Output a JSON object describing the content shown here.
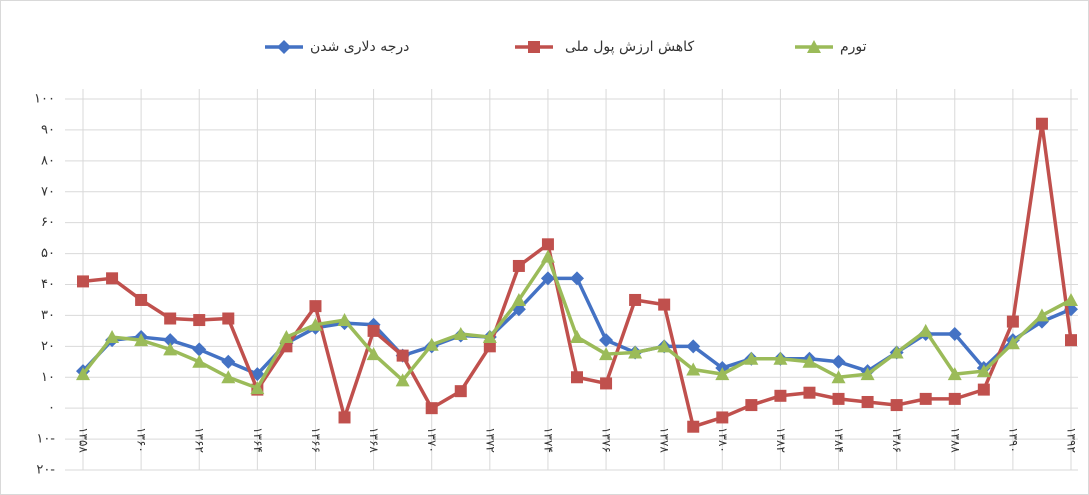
{
  "chart_data": {
    "type": "line",
    "categories": [
      "۱۳۵۸",
      null,
      "۱۳۶۰",
      null,
      "۱۳۶۲",
      null,
      "۱۳۶۴",
      null,
      "۱۳۶۶",
      null,
      "۱۳۶۸",
      null,
      "۱۳۷۰",
      null,
      "۱۳۷۲",
      null,
      "۱۳۷۴",
      null,
      "۱۳۷۶",
      null,
      "۱۳۷۸",
      null,
      "۱۳۸۰",
      null,
      "۱۳۸۲",
      null,
      "۱۳۸۴",
      null,
      "۱۳۸۶",
      null,
      "۱۳۸۸",
      null,
      "۱۳۹۰",
      null,
      "۱۳۹۲"
    ],
    "series": [
      {
        "name": "درجه دلاری شدن",
        "color": "#4472c4",
        "marker": "diamond",
        "values": [
          12,
          22,
          23,
          22,
          19,
          15,
          11,
          21,
          26,
          27.5,
          27,
          17,
          20,
          23.5,
          23,
          32,
          42,
          42,
          22,
          18,
          20,
          20,
          13,
          16,
          16,
          16,
          15,
          12,
          18,
          24,
          24,
          13,
          22,
          28,
          32
        ]
      },
      {
        "name": "کاهش ارزش پول ملی",
        "color": "#c0504d",
        "marker": "square",
        "values": [
          41,
          42,
          35,
          29,
          28.5,
          29,
          6,
          20,
          33,
          -3,
          25,
          17,
          0,
          5.5,
          20,
          46,
          53,
          10,
          8,
          35,
          33.5,
          -6,
          -3,
          1,
          4,
          5,
          3,
          2,
          1,
          3,
          3,
          6,
          28,
          92,
          22
        ]
      },
      {
        "name": "تورم",
        "color": "#9bbb59",
        "marker": "triangle",
        "values": [
          11,
          23,
          22,
          19,
          15,
          10,
          6.5,
          23,
          27,
          28.5,
          17.5,
          9,
          20.5,
          24,
          23,
          35,
          49,
          23,
          17.5,
          18,
          20,
          12.5,
          11,
          16,
          16,
          15,
          10,
          11,
          18,
          25,
          11,
          12,
          21,
          30,
          35
        ]
      }
    ],
    "ylim": [
      -20,
      100
    ],
    "yticks": [
      {
        "value": -20,
        "label": "۲۰-"
      },
      {
        "value": -10,
        "label": "۱۰-"
      },
      {
        "value": 0,
        "label": "۰"
      },
      {
        "value": 10,
        "label": "۱۰"
      },
      {
        "value": 20,
        "label": "۲۰"
      },
      {
        "value": 30,
        "label": "۳۰"
      },
      {
        "value": 40,
        "label": "۴۰"
      },
      {
        "value": 50,
        "label": "۵۰"
      },
      {
        "value": 60,
        "label": "۶۰"
      },
      {
        "value": 70,
        "label": "۷۰"
      },
      {
        "value": 80,
        "label": "۸۰"
      },
      {
        "value": 90,
        "label": "۹۰"
      },
      {
        "value": 100,
        "label": "۱۰۰"
      }
    ],
    "grid": true,
    "legend": "top"
  }
}
